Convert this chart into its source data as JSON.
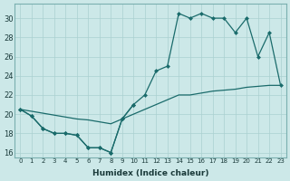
{
  "xlabel": "Humidex (Indice chaleur)",
  "xlim": [
    -0.5,
    23.5
  ],
  "ylim": [
    15.5,
    31.5
  ],
  "xticks": [
    0,
    1,
    2,
    3,
    4,
    5,
    6,
    7,
    8,
    9,
    10,
    11,
    12,
    13,
    14,
    15,
    16,
    17,
    18,
    19,
    20,
    21,
    22,
    23
  ],
  "yticks": [
    16,
    18,
    20,
    22,
    24,
    26,
    28,
    30
  ],
  "bg_color": "#cce8e8",
  "grid_color": "#aad0d0",
  "line_color": "#1a6b6b",
  "series_low_x": [
    0,
    1,
    2,
    3,
    4,
    5,
    6,
    7,
    8,
    9,
    10
  ],
  "series_low_y": [
    20.5,
    19.8,
    18.5,
    18.0,
    18.0,
    17.8,
    16.5,
    16.5,
    16.0,
    19.5,
    21.0
  ],
  "series_mid_x": [
    0,
    1,
    2,
    3,
    4,
    5,
    6,
    7,
    8,
    9,
    10,
    11,
    12,
    13,
    14,
    15,
    16,
    17,
    18,
    19,
    20,
    21,
    22,
    23
  ],
  "series_mid_y": [
    20.5,
    20.3,
    20.1,
    19.9,
    19.7,
    19.5,
    19.4,
    19.2,
    19.0,
    19.5,
    20.0,
    20.5,
    21.0,
    21.5,
    22.0,
    22.0,
    22.2,
    22.4,
    22.5,
    22.6,
    22.8,
    22.9,
    23.0,
    23.0
  ],
  "series_high_x": [
    0,
    1,
    2,
    3,
    4,
    5,
    6,
    7,
    8,
    9,
    10,
    11,
    12,
    13,
    14,
    15,
    16,
    17,
    18,
    19,
    20,
    21,
    22,
    23
  ],
  "series_high_y": [
    20.5,
    19.8,
    18.5,
    18.0,
    18.0,
    17.8,
    16.5,
    16.5,
    16.0,
    19.5,
    21.0,
    22.0,
    24.5,
    25.0,
    30.5,
    30.0,
    30.5,
    30.0,
    30.0,
    28.5,
    30.0,
    26.0,
    28.5,
    23.0
  ]
}
